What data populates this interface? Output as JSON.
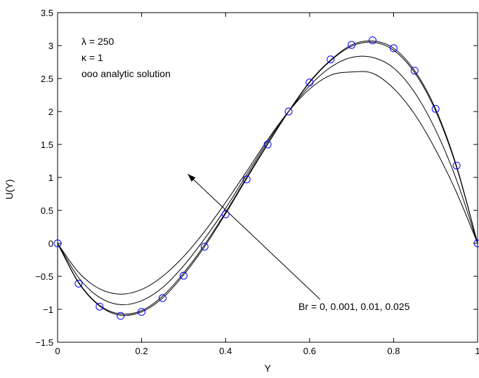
{
  "chart_data": {
    "type": "line",
    "title": "",
    "xlabel": "Y",
    "ylabel": "U(Y)",
    "xlim": [
      0,
      1
    ],
    "ylim": [
      -1.5,
      3.5
    ],
    "xticks": [
      "0",
      "0.2",
      "0.4",
      "0.6",
      "0.8",
      "1"
    ],
    "xtick_values": [
      0,
      0.2,
      0.4,
      0.6,
      0.8,
      1
    ],
    "yticks": [
      "−1.5",
      "−1",
      "−0.5",
      "0",
      "0.5",
      "1",
      "1.5",
      "2",
      "2.5",
      "3",
      "3.5"
    ],
    "ytick_values": [
      -1.5,
      -1,
      -0.5,
      0,
      0.5,
      1,
      1.5,
      2,
      2.5,
      3,
      3.5
    ],
    "grid": false,
    "line_color": "#000000",
    "marker_color": "#0000ff",
    "x": [
      0,
      0.05,
      0.1,
      0.15,
      0.2,
      0.25,
      0.3,
      0.35,
      0.4,
      0.45,
      0.5,
      0.55,
      0.6,
      0.65,
      0.7,
      0.75,
      0.8,
      0.85,
      0.9,
      0.95,
      1
    ],
    "series": [
      {
        "values": [
          0,
          -0.6,
          -0.95,
          -1.09,
          -1.04,
          -0.83,
          -0.48,
          -0.05,
          0.45,
          0.98,
          1.5,
          2.0,
          2.45,
          2.78,
          3.01,
          3.07,
          2.96,
          2.62,
          2.04,
          1.17,
          0
        ]
      },
      {
        "values": [
          0,
          -0.59,
          -0.94,
          -1.07,
          -1.02,
          -0.8,
          -0.45,
          -0.02,
          0.47,
          1.0,
          1.51,
          2.0,
          2.44,
          2.77,
          2.99,
          3.05,
          2.93,
          2.59,
          2.01,
          1.15,
          0
        ]
      },
      {
        "values": [
          0,
          -0.52,
          -0.82,
          -0.93,
          -0.87,
          -0.67,
          -0.34,
          0.07,
          0.53,
          1.04,
          1.54,
          2.0,
          2.39,
          2.67,
          2.82,
          2.82,
          2.66,
          2.29,
          1.72,
          0.96,
          0
        ]
      },
      {
        "values": [
          0,
          -0.44,
          -0.69,
          -0.77,
          -0.7,
          -0.5,
          -0.2,
          0.18,
          0.62,
          1.09,
          1.57,
          2.0,
          2.34,
          2.55,
          2.6,
          2.58,
          2.35,
          1.96,
          1.42,
          0.77,
          0
        ]
      }
    ],
    "markers": {
      "name": "analytic solution",
      "x": [
        0,
        0.05,
        0.1,
        0.15,
        0.2,
        0.25,
        0.3,
        0.35,
        0.4,
        0.45,
        0.5,
        0.55,
        0.6,
        0.65,
        0.7,
        0.75,
        0.8,
        0.85,
        0.9,
        0.95,
        1
      ],
      "y": [
        0,
        -0.61,
        -0.96,
        -1.1,
        -1.04,
        -0.83,
        -0.49,
        -0.05,
        0.44,
        0.97,
        1.5,
        2.0,
        2.44,
        2.79,
        3.01,
        3.08,
        2.96,
        2.62,
        2.04,
        1.18,
        0
      ]
    },
    "annotations": {
      "line1": "λ = 250",
      "line2": "κ = 1",
      "line3": "ooo analytic solution",
      "arrow_label": "Br = 0, 0.001, 0.01, 0.025"
    },
    "arrow": {
      "from": [
        0.625,
        -0.85
      ],
      "to": [
        0.31,
        1.05
      ]
    }
  }
}
